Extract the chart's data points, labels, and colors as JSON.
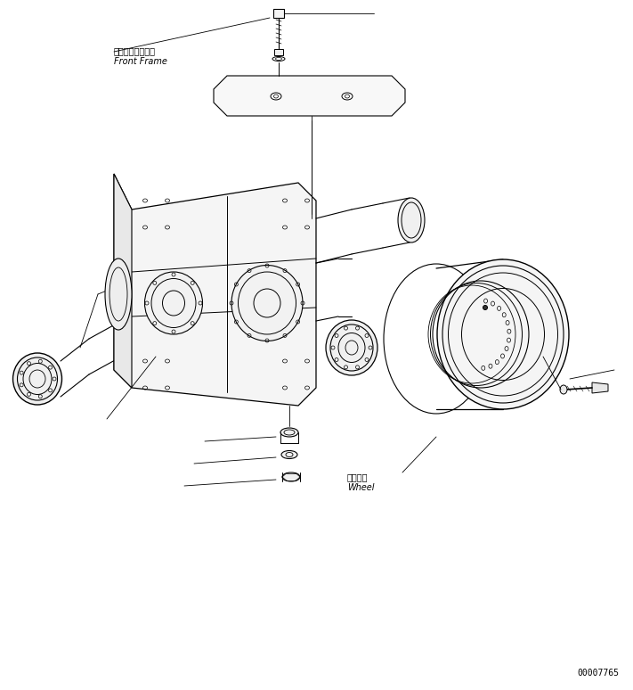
{
  "bg_color": "#ffffff",
  "line_color": "#000000",
  "fig_width": 7.11,
  "fig_height": 7.74,
  "dpi": 100,
  "label_front_frame_jp": "フロントフレーム",
  "label_front_frame_en": "Front Frame",
  "label_wheel_jp": "ホイール",
  "label_wheel_en": "Wheel",
  "part_number": "00007765",
  "font_size_label": 7.0,
  "font_size_partno": 7
}
